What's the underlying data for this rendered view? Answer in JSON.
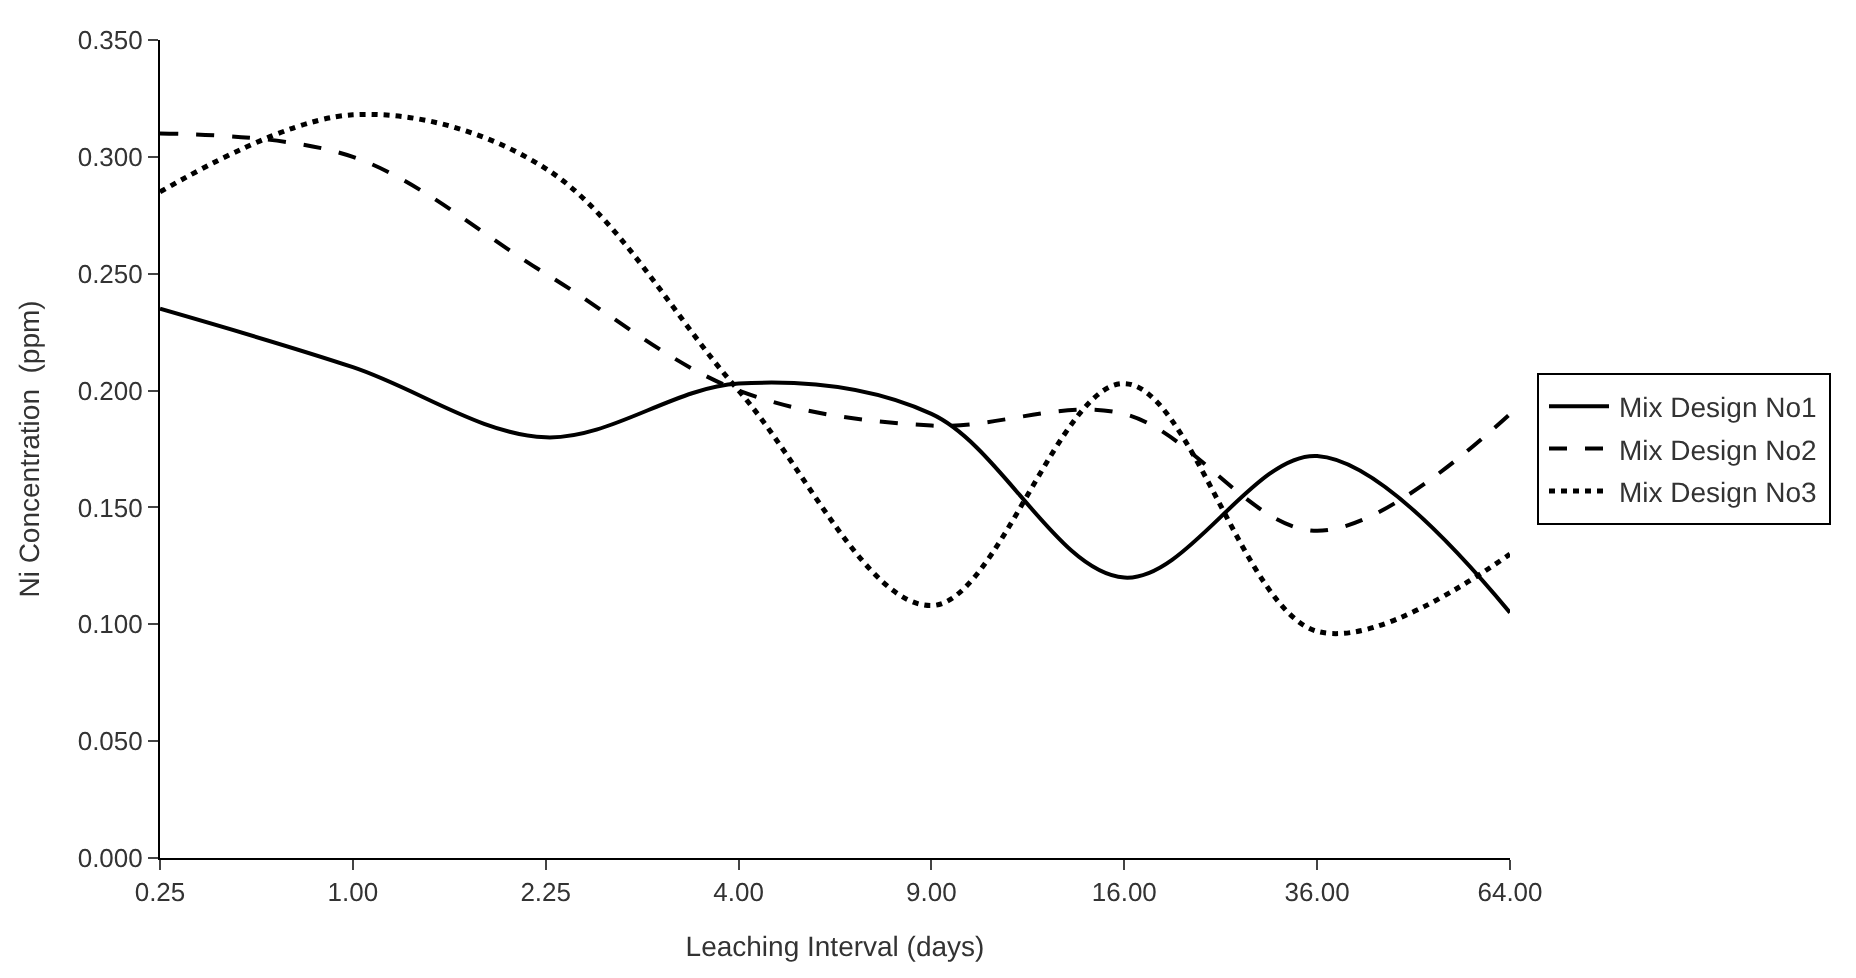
{
  "chart_data": {
    "type": "line",
    "xlabel": "Leaching Interval (days)",
    "ylabel": "Ni Concentration  (ppm)",
    "categories": [
      "0.25",
      "1.00",
      "2.25",
      "4.00",
      "9.00",
      "16.00",
      "36.00",
      "64.00"
    ],
    "series": [
      {
        "name": "Mix Design No1",
        "color": "#000000",
        "line_style": "solid",
        "values": [
          0.235,
          0.21,
          0.18,
          0.203,
          0.19,
          0.12,
          0.172,
          0.105
        ]
      },
      {
        "name": "Mix Design No2",
        "color": "#000000",
        "line_style": "dashed",
        "values": [
          0.31,
          0.3,
          0.25,
          0.2,
          0.185,
          0.19,
          0.14,
          0.19
        ]
      },
      {
        "name": "Mix Design No3",
        "color": "#000000",
        "line_style": "dotted",
        "values": [
          0.285,
          0.318,
          0.295,
          0.2,
          0.108,
          0.203,
          0.097,
          0.13
        ]
      }
    ],
    "ylim": [
      0,
      0.35
    ],
    "yticks": [
      {
        "value": 0,
        "label": "0.000"
      },
      {
        "value": 0.05,
        "label": "0.050"
      },
      {
        "value": 0.1,
        "label": "0.100"
      },
      {
        "value": 0.15,
        "label": "0.150"
      },
      {
        "value": 0.2,
        "label": "0.200"
      },
      {
        "value": 0.25,
        "label": "0.250"
      },
      {
        "value": 0.3,
        "label": "0.300"
      },
      {
        "value": 0.35,
        "label": "0.350"
      }
    ],
    "grid": false,
    "legend": "right",
    "marker": "none"
  }
}
